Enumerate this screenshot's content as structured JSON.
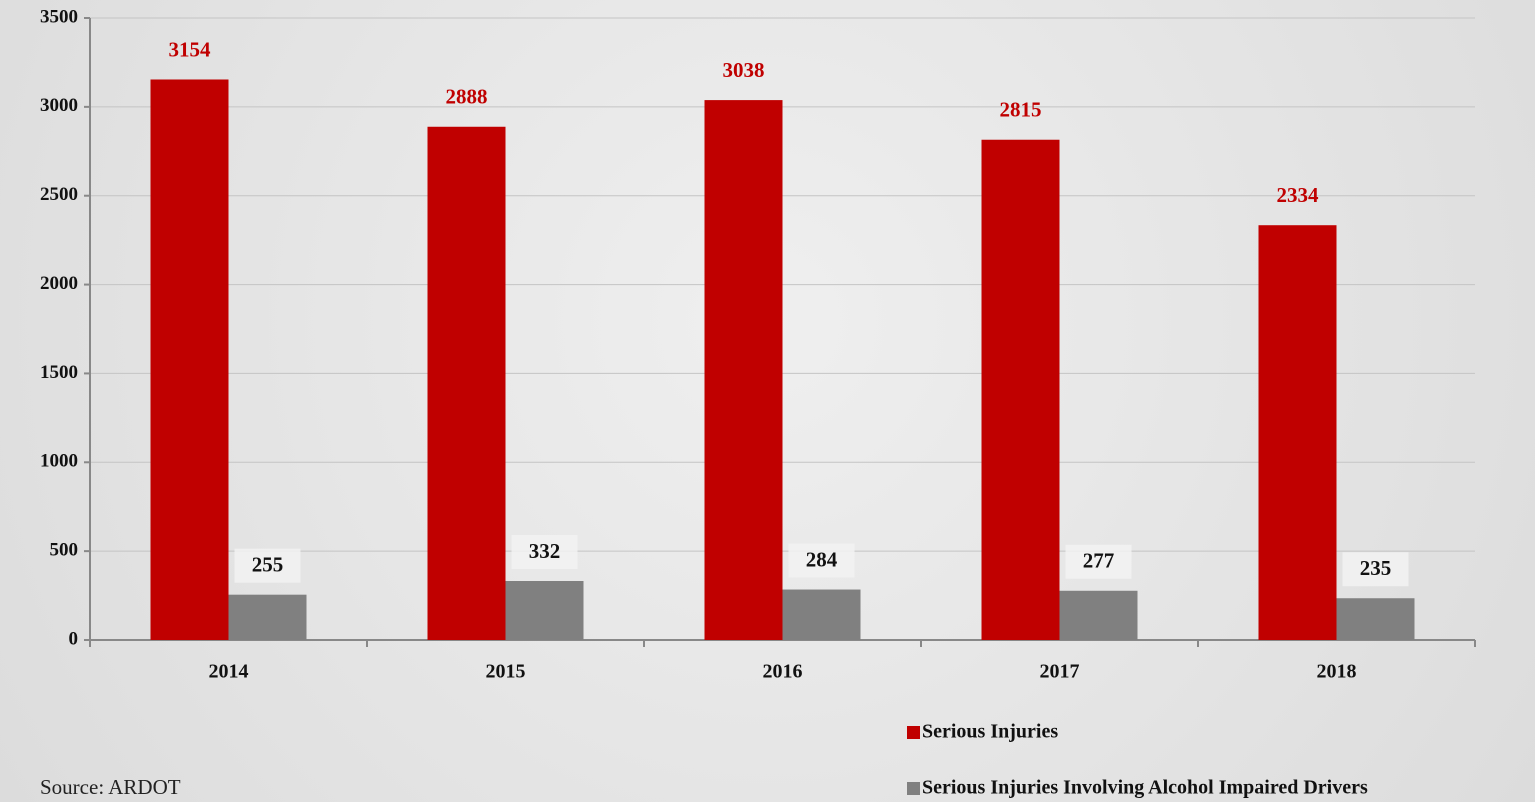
{
  "chart_data": {
    "type": "bar",
    "categories": [
      "2014",
      "2015",
      "2016",
      "2017",
      "2018"
    ],
    "series": [
      {
        "name": "Serious Injuries",
        "color": "#c00000",
        "label_color": "#c00000",
        "values": [
          3154,
          2888,
          3038,
          2815,
          2334
        ]
      },
      {
        "name": "Serious Injuries Involving Alcohol Impaired Drivers",
        "color": "#808080",
        "label_color": "#111111",
        "values": [
          255,
          332,
          284,
          277,
          235
        ]
      }
    ],
    "ylim": [
      0,
      3500
    ],
    "yticks": [
      0,
      500,
      1000,
      1500,
      2000,
      2500,
      3000,
      3500
    ],
    "grid": true,
    "legend": "bottom-right",
    "source": "Source: ARDOT"
  }
}
